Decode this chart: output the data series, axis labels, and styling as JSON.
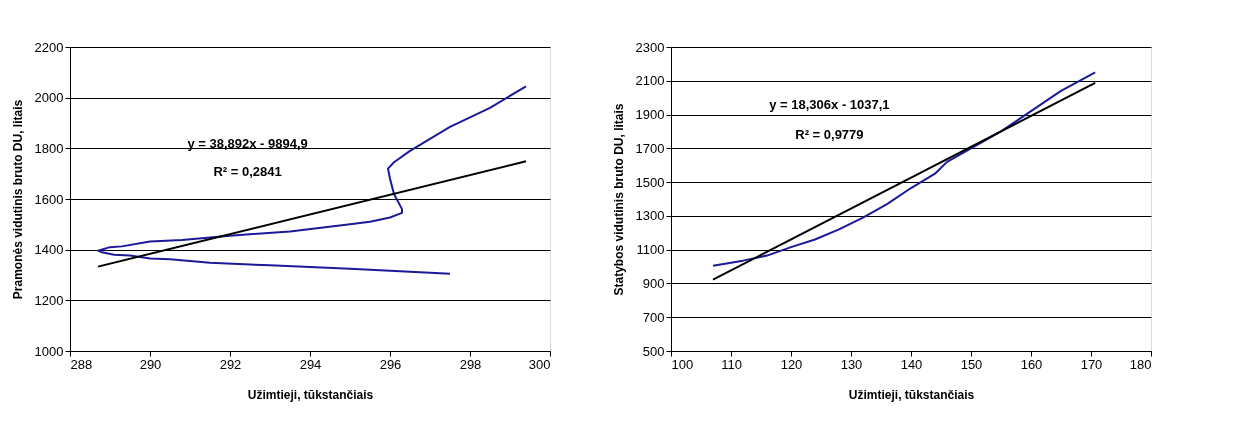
{
  "chart_data": [
    {
      "type": "line",
      "xlabel": "Užimtieji, tūkstančiais",
      "ylabel": "Pramonės vidutinis bruto DU, litais",
      "xlim": [
        288,
        300
      ],
      "xticks": [
        288,
        290,
        292,
        294,
        296,
        298,
        300
      ],
      "ylim": [
        1000,
        2200
      ],
      "yticks": [
        1000,
        1200,
        1400,
        1600,
        1800,
        2000,
        2200
      ],
      "grid": "y",
      "marker": "none",
      "line_style": "solid",
      "annotations": [
        "y = 38,892x - 9894,9",
        "R² = 0,2841"
      ],
      "series": [
        {
          "color": "#1a1a99",
          "x": [
            297.5,
            295,
            293,
            291.5,
            290.5,
            290,
            289.5,
            289.1,
            288.8,
            288.7,
            289.0,
            289.3,
            290,
            290.8,
            292,
            293.5,
            295,
            295.5,
            296.0,
            296.3,
            296.3,
            296.1,
            296.0,
            295.95,
            296.1,
            296.5,
            297.5,
            298.5,
            299.4
          ],
          "values": [
            1305,
            1325,
            1338,
            1348,
            1362,
            1365,
            1377,
            1380,
            1390,
            1396,
            1410,
            1413,
            1432,
            1438,
            1455,
            1472,
            1500,
            1510,
            1527,
            1545,
            1560,
            1620,
            1680,
            1720,
            1745,
            1790,
            1885,
            1960,
            2045
          ]
        },
        {
          "color": "#000000",
          "x": [
            288.7,
            299.4
          ],
          "values": [
            1333,
            1749
          ]
        }
      ]
    },
    {
      "type": "line",
      "xlabel": "Užimtieji, tūkstančiais",
      "ylabel": "Statybos vidutinis bruto DU, litais",
      "xlim": [
        100,
        180
      ],
      "xticks": [
        100,
        110,
        120,
        130,
        140,
        150,
        160,
        170,
        180
      ],
      "ylim": [
        500,
        2300
      ],
      "yticks": [
        500,
        700,
        900,
        1100,
        1300,
        1500,
        1700,
        1900,
        2100,
        2300
      ],
      "grid": "y",
      "marker": "none",
      "line_style": "solid",
      "annotations": [
        "y = 18,306x - 1037,1",
        "R² = 0,9779"
      ],
      "series": [
        {
          "color": "#1a1a99",
          "x": [
            107,
            112,
            116,
            120,
            124,
            128,
            132,
            136,
            140,
            144,
            146,
            150,
            155,
            160,
            165,
            170.7
          ],
          "values": [
            1005,
            1035,
            1065,
            1115,
            1160,
            1220,
            1290,
            1370,
            1465,
            1550,
            1620,
            1700,
            1800,
            1920,
            2040,
            2150
          ]
        },
        {
          "color": "#000000",
          "x": [
            107,
            170.7
          ],
          "values": [
            922,
            2088
          ]
        }
      ]
    }
  ]
}
